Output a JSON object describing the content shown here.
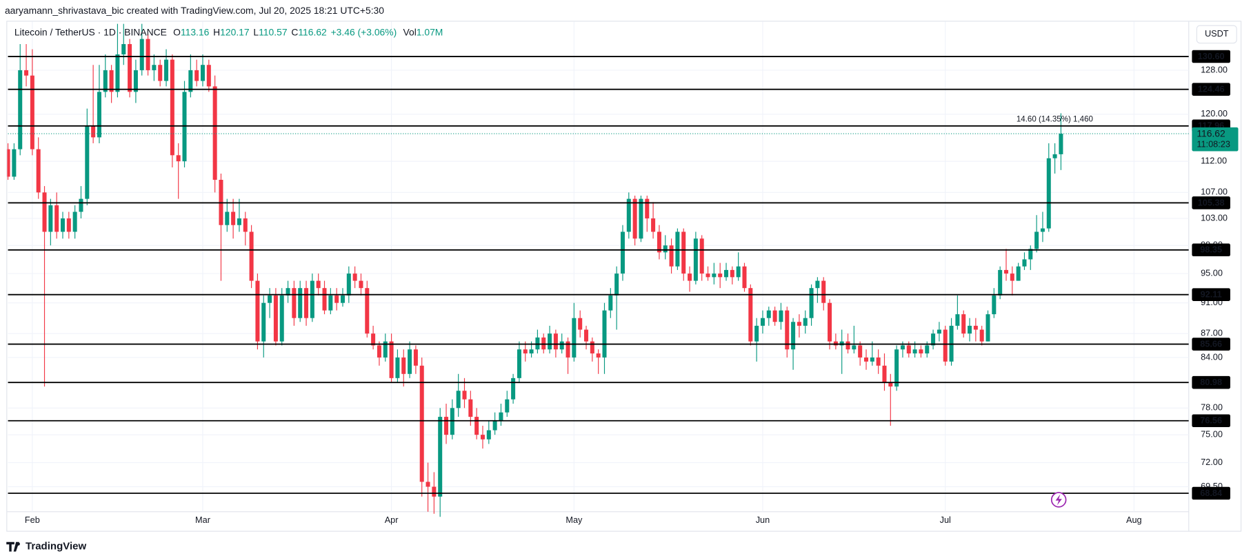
{
  "header": "aaryamann_shrivastava_bic created with TradingView.com, Jul 20, 2025 18:21 UTC+5:30",
  "footer": "TradingView",
  "chart_data": {
    "type": "candlestick",
    "title": "Litecoin / TetherUS · 1D · BINANCE",
    "legend_items": [
      {
        "label": "O",
        "value": "113.16"
      },
      {
        "label": "H",
        "value": "120.17"
      },
      {
        "label": "L",
        "value": "110.57"
      },
      {
        "label": "C",
        "value": "116.62"
      }
    ],
    "change": "+3.46 (+3.06%)",
    "volume": {
      "label": "Vol",
      "value": "1.07M"
    },
    "currency": "USDT",
    "up_color": "#089981",
    "down_color": "#f23645",
    "open": [
      114,
      109.5,
      114,
      128,
      127,
      114,
      107,
      101,
      105,
      101,
      103,
      101,
      104,
      106,
      118,
      116,
      124,
      128,
      124,
      131,
      133,
      124,
      128,
      134,
      128,
      129,
      126,
      130,
      113,
      112,
      124,
      128,
      126,
      129,
      125,
      109,
      102,
      104,
      102,
      103,
      101,
      94,
      86,
      91,
      92,
      86,
      92,
      93,
      89,
      93,
      89,
      94,
      93,
      90,
      92,
      91,
      92,
      95,
      94,
      93,
      87,
      85.5,
      84,
      86,
      81.5,
      84,
      82,
      85,
      83,
      70,
      69.5,
      68.5,
      77,
      75,
      78,
      80,
      79,
      77,
      75,
      74.5,
      75.5,
      76.5,
      77.5,
      79,
      81.5,
      85,
      84.5,
      85,
      86.5,
      85,
      87,
      85,
      86,
      84,
      89,
      87.5,
      86,
      84.5,
      84,
      90,
      92,
      95,
      101,
      106,
      100,
      106,
      103,
      101,
      98,
      99,
      96,
      101,
      95,
      94,
      100,
      95,
      94.5,
      95,
      94.5,
      95.5,
      94.5,
      96,
      93,
      86,
      88,
      89,
      90,
      88.5,
      90,
      85,
      88.5,
      88,
      89,
      93,
      94,
      91,
      86,
      85.5,
      86,
      85,
      85.5,
      84,
      83.5,
      84,
      83,
      81,
      80.5,
      85,
      85.5,
      84.5,
      85,
      84.5,
      85.5,
      87,
      87.5,
      83.5,
      88,
      89.5,
      87,
      88,
      87.5,
      86,
      89.5,
      92,
      95.5,
      95,
      94,
      96,
      97,
      98.5,
      101,
      101.5,
      112.5,
      113.16
    ],
    "high": [
      115,
      115,
      133,
      133,
      132,
      116,
      108,
      106,
      107,
      104,
      104,
      105,
      108,
      121,
      129,
      129,
      131,
      129,
      137,
      137,
      134,
      130,
      137,
      135,
      131,
      130,
      132,
      131,
      115,
      126,
      131,
      130,
      131,
      130,
      127,
      110,
      106,
      106,
      106,
      104,
      102,
      95,
      92,
      93,
      93,
      93,
      94,
      94,
      94,
      94,
      95,
      95,
      94,
      93,
      93,
      93,
      96,
      96,
      95,
      94,
      88,
      86,
      87,
      87,
      85,
      85,
      86,
      85.5,
      84,
      72,
      71,
      78,
      78.5,
      79,
      82,
      81.5,
      80,
      78,
      76,
      76.5,
      77.5,
      78.5,
      80,
      82,
      86,
      86,
      86,
      87.5,
      87,
      88,
      87.5,
      87,
      86.5,
      91,
      90,
      88,
      86.5,
      85,
      91,
      93,
      96,
      102,
      107,
      106.5,
      106.5,
      106.5,
      105.5,
      102,
      100.5,
      100,
      101.5,
      101.5,
      96,
      101,
      100.5,
      96,
      96.5,
      96.5,
      96.5,
      96,
      98,
      96.5,
      93.5,
      89,
      90,
      90.5,
      90.5,
      91,
      90.5,
      89,
      89.5,
      90,
      93.5,
      94.5,
      94.5,
      91.5,
      87,
      87.5,
      87,
      88,
      86,
      85,
      86,
      85,
      84.5,
      82,
      85.5,
      86,
      86,
      86,
      85.5,
      86,
      87.5,
      88.5,
      88,
      89,
      92,
      90,
      89,
      89,
      88,
      90,
      93,
      96,
      98.5,
      96,
      96.5,
      98,
      99,
      103.5,
      104,
      115,
      115,
      120.17
    ],
    "low": [
      109,
      109,
      113,
      125,
      113,
      106,
      80.5,
      99,
      100,
      100,
      100,
      100,
      103,
      105,
      115,
      115,
      123,
      122,
      123,
      129,
      123,
      122,
      127,
      127,
      126,
      125,
      125,
      111,
      106,
      111,
      123,
      125,
      125,
      124,
      107,
      94,
      101,
      100,
      101,
      99,
      93,
      85,
      84,
      89,
      85.5,
      85.5,
      91,
      88,
      88.5,
      88,
      88.5,
      92,
      89.5,
      89.5,
      90,
      90.5,
      91,
      93,
      92,
      86.5,
      85,
      83,
      83.5,
      81,
      81,
      80.5,
      81.5,
      82,
      68.5,
      67,
      66.8,
      66.5,
      74,
      74.5,
      77,
      78,
      76,
      74.5,
      73.5,
      74,
      75,
      76,
      77,
      78.5,
      81,
      83.5,
      84,
      84.5,
      84.5,
      84.5,
      84,
      84.5,
      82,
      83.5,
      86.5,
      85,
      83.5,
      82,
      82,
      89,
      87.5,
      94,
      100,
      99,
      99.5,
      101,
      100,
      97,
      97,
      95,
      95.5,
      94,
      92.5,
      93.5,
      94,
      94,
      93.5,
      93,
      94,
      93.5,
      94,
      92.5,
      85.5,
      83.5,
      87,
      88,
      88,
      87.5,
      84,
      82.5,
      86.5,
      87,
      88,
      91,
      90,
      85,
      85,
      82,
      84.5,
      84.5,
      83,
      82.5,
      83,
      82,
      80,
      76,
      80,
      84,
      84,
      84,
      84,
      84,
      85,
      86,
      83,
      83,
      87.5,
      86.5,
      86,
      86,
      85.5,
      86,
      89,
      91.5,
      94,
      92,
      94,
      95.5,
      95.5,
      98,
      99.5,
      101,
      110,
      110.57
    ],
    "close": [
      109.5,
      114,
      128,
      127,
      114,
      107,
      101,
      105,
      101,
      103,
      101,
      104,
      106,
      118,
      116,
      124,
      128,
      124,
      131,
      133,
      124,
      128,
      134,
      128,
      129,
      126,
      130,
      113,
      112,
      124,
      128,
      126,
      129,
      125,
      109,
      102,
      104,
      102,
      103,
      101,
      94,
      86,
      91,
      92,
      86,
      92,
      93,
      89,
      93,
      89,
      94,
      93,
      90,
      92,
      91,
      92,
      95,
      94,
      93,
      87,
      85.5,
      84,
      86,
      81.5,
      84,
      82,
      85,
      83,
      70,
      69.5,
      68.5,
      77,
      75,
      78,
      80,
      79,
      77,
      75,
      74.5,
      75.5,
      76.5,
      77.5,
      79,
      81.5,
      85,
      84.5,
      85,
      86.5,
      85,
      87,
      85,
      86,
      84,
      89,
      87.5,
      86,
      84.5,
      84,
      90,
      92,
      95,
      101,
      106,
      100,
      106,
      103,
      101,
      98,
      99,
      96,
      101,
      95,
      94,
      100,
      95,
      94.5,
      95,
      94.5,
      95.5,
      94.5,
      96,
      93,
      86,
      88,
      89,
      90,
      88.5,
      90,
      85,
      88.5,
      88,
      89,
      93,
      94,
      91,
      86,
      85.5,
      86,
      85,
      85.5,
      84,
      83.5,
      84,
      83,
      81,
      80.5,
      85,
      85.5,
      84.5,
      85,
      84.5,
      85.5,
      87,
      87.5,
      83.5,
      88,
      89.5,
      87,
      88,
      87.5,
      86,
      89.5,
      92,
      95.5,
      95,
      94,
      96,
      97,
      98.5,
      101,
      101.5,
      112.5,
      113.16,
      116.62
    ],
    "xlim": [
      0,
      194
    ],
    "xticks": [
      {
        "value": 4,
        "label": "Feb"
      },
      {
        "value": 32,
        "label": "Mar"
      },
      {
        "value": 63,
        "label": "Apr"
      },
      {
        "value": 93,
        "label": "May"
      },
      {
        "value": 124,
        "label": "Jun"
      },
      {
        "value": 154,
        "label": "Jul"
      },
      {
        "value": 185,
        "label": "Aug"
      }
    ],
    "ylim": [
      67,
      137.3
    ],
    "log_scale": true,
    "grid": true,
    "yticks": [
      {
        "value": 128,
        "label": "128.00"
      },
      {
        "value": 120,
        "label": "120.00"
      },
      {
        "value": 112,
        "label": "112.00"
      },
      {
        "value": 107,
        "label": "107.00"
      },
      {
        "value": 103,
        "label": "103.00"
      },
      {
        "value": 99,
        "label": "99.00"
      },
      {
        "value": 95,
        "label": "95.00"
      },
      {
        "value": 91,
        "label": "91.00"
      },
      {
        "value": 87,
        "label": "87.00"
      },
      {
        "value": 84,
        "label": "84.00"
      },
      {
        "value": 78,
        "label": "78.00"
      },
      {
        "value": 75,
        "label": "75.00"
      },
      {
        "value": 72,
        "label": "72.00"
      },
      {
        "value": 69.5,
        "label": "69.50"
      }
    ],
    "levels": [
      {
        "value": 130.6,
        "label": "130.60"
      },
      {
        "value": 124.46,
        "label": "124.46"
      },
      {
        "value": 117.96,
        "label": "117.96"
      },
      {
        "value": 105.38,
        "label": "105.38"
      },
      {
        "value": 98.35,
        "label": "98.35"
      },
      {
        "value": 92.11,
        "label": "92.11"
      },
      {
        "value": 85.66,
        "label": "85.66"
      },
      {
        "value": 80.98,
        "label": "80.98"
      },
      {
        "value": 76.56,
        "label": "76.56"
      },
      {
        "value": 68.84,
        "label": "68.84"
      }
    ],
    "last_price": {
      "value": 116.62,
      "label": "116.62"
    },
    "countdown": "11:08:23",
    "annotation": "14.60 (14.35%) 1,460"
  }
}
